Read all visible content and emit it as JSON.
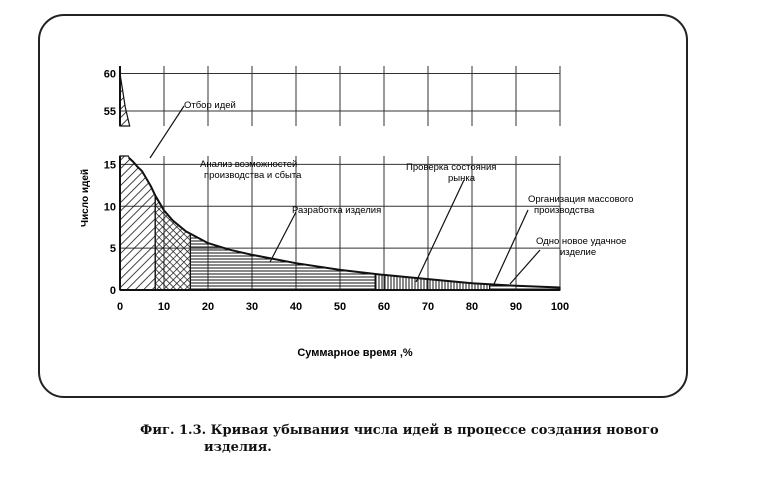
{
  "chart_data": {
    "type": "area",
    "xlabel": "Суммарное время ,%",
    "ylabel": "Число идей",
    "x_ticks": [
      0,
      10,
      20,
      30,
      40,
      50,
      60,
      70,
      80,
      90,
      100
    ],
    "y_ticks_lower": [
      0,
      5,
      10,
      15
    ],
    "y_ticks_upper": [
      55,
      60
    ],
    "ylim_lower": [
      0,
      16
    ],
    "ylim_upper": [
      53,
      61
    ],
    "broken_y_axis": true,
    "grid": true,
    "curve": {
      "x": [
        0,
        1,
        2,
        3,
        4,
        5,
        6,
        7,
        8,
        10,
        12,
        15,
        20,
        25,
        30,
        40,
        50,
        60,
        70,
        80,
        90,
        100
      ],
      "y": [
        60,
        56,
        15.8,
        15.3,
        14.7,
        14.2,
        13.3,
        12.4,
        11.3,
        9.5,
        8.3,
        7.0,
        5.6,
        4.8,
        4.2,
        3.2,
        2.4,
        1.8,
        1.3,
        0.8,
        0.5,
        0.3
      ]
    },
    "stages": [
      {
        "label": "Отбор идей",
        "x_start": 0,
        "x_end": 8
      },
      {
        "label": "Анализ возможностей производства и сбыта",
        "x_start": 8,
        "x_end": 16
      },
      {
        "label": "Разработка изделия",
        "x_start": 16,
        "x_end": 58
      },
      {
        "label": "Проверка состояния рынка",
        "x_start": 58,
        "x_end": 84
      },
      {
        "label": "Организация массового производства",
        "x_start": 84,
        "x_end": 100
      }
    ],
    "annotation": "Одно новое удачное изделие"
  },
  "caption": {
    "line1": "Фиг. 1.3. Кривая убывания числа идей в процессе создания нового",
    "line2": "изделия."
  }
}
